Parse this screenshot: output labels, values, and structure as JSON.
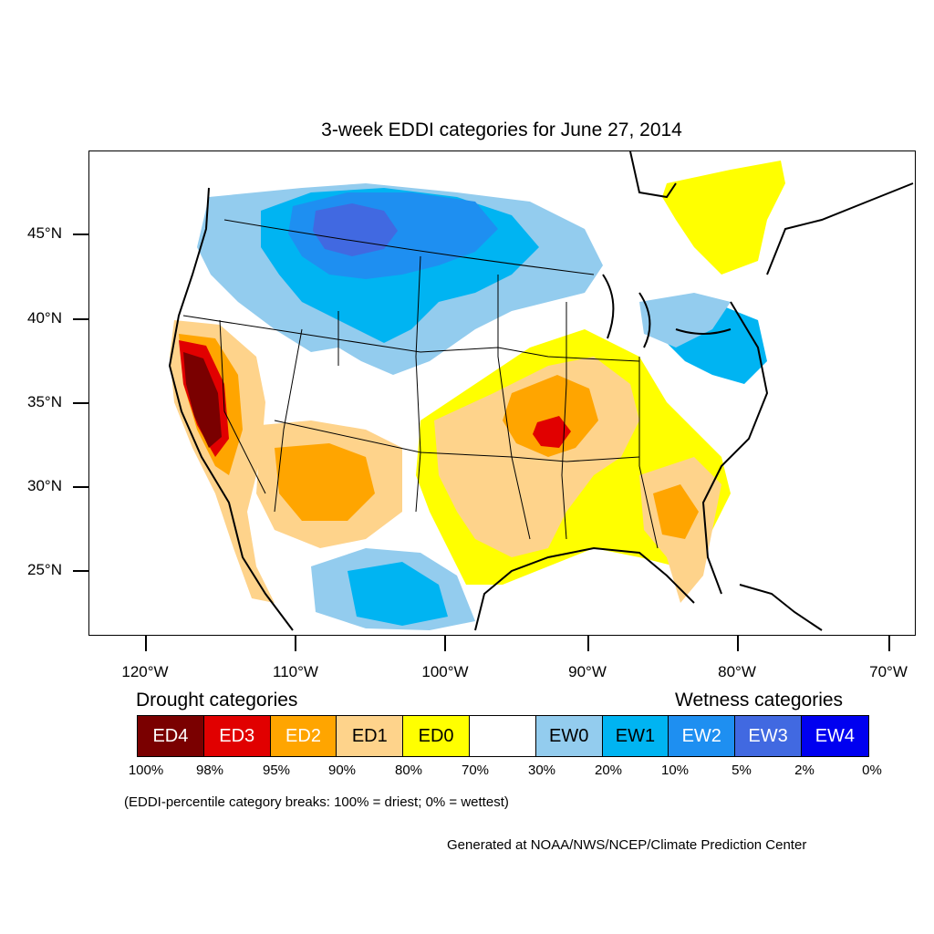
{
  "title": "3-week EDDI categories for June 27, 2014",
  "colors": {
    "ED4": "#7a0000",
    "ED3": "#e10000",
    "ED2": "#ffa500",
    "ED1": "#fed38b",
    "ED0": "#ffff00",
    "neutral": "#ffffff",
    "EW0": "#93ccee",
    "EW1": "#00b4f2",
    "EW2": "#1e8ff1",
    "EW3": "#4169e1",
    "EW4": "#0000f0"
  },
  "lat_labels": [
    "45°N",
    "40°N",
    "35°N",
    "30°N",
    "25°N"
  ],
  "lon_labels": [
    "120°W",
    "110°W",
    "100°W",
    "90°W",
    "80°W",
    "70°W"
  ],
  "legend": {
    "drought_heading": "Drought categories",
    "wetness_heading": "Wetness categories",
    "categories": [
      {
        "label": "ED4",
        "color": "#7a0000",
        "text_color": "#ffffff"
      },
      {
        "label": "ED3",
        "color": "#e10000",
        "text_color": "#ffffff"
      },
      {
        "label": "ED2",
        "color": "#ffa500",
        "text_color": "#ffffff"
      },
      {
        "label": "ED1",
        "color": "#fed38b",
        "text_color": "#000000"
      },
      {
        "label": "ED0",
        "color": "#ffff00",
        "text_color": "#000000"
      },
      {
        "label": "",
        "color": "#ffffff",
        "text_color": "#000000"
      },
      {
        "label": "EW0",
        "color": "#93ccee",
        "text_color": "#000000"
      },
      {
        "label": "EW1",
        "color": "#00b4f2",
        "text_color": "#000000"
      },
      {
        "label": "EW2",
        "color": "#1e8ff1",
        "text_color": "#ffffff"
      },
      {
        "label": "EW3",
        "color": "#4169e1",
        "text_color": "#ffffff"
      },
      {
        "label": "EW4",
        "color": "#0000f0",
        "text_color": "#ffffff"
      }
    ],
    "breaks": [
      "100%",
      "98%",
      "95%",
      "90%",
      "80%",
      "70%",
      "30%",
      "20%",
      "10%",
      "5%",
      "2%",
      "0%"
    ]
  },
  "note": "(EDDI-percentile category breaks: 100% = driest; 0% = wettest)",
  "credit": "Generated at NOAA/NWS/NCEP/Climate Prediction Center"
}
